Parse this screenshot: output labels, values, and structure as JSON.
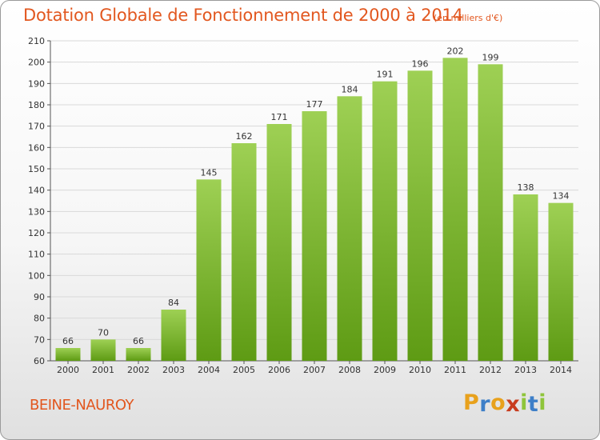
{
  "title": "Dotation Globale de Fonctionnement de 2000 à 2014",
  "unit_note": "(en milliers d'€)",
  "commune": "BEINE-NAUROY",
  "brand": {
    "letters": [
      "P",
      "r",
      "o",
      "x",
      "i",
      "t",
      "i"
    ],
    "colors": [
      "#e8a11c",
      "#3d7fc8",
      "#e8a11c",
      "#c83c1e",
      "#8fc53a",
      "#3d7fc8",
      "#8fc53a"
    ]
  },
  "colors": {
    "accent": "#e2571f",
    "bar_light": "#9ed054",
    "bar_dark": "#5e9b14",
    "grid": "#d9d9d9"
  },
  "chart_data": {
    "type": "bar",
    "categories": [
      "2000",
      "2001",
      "2002",
      "2003",
      "2004",
      "2005",
      "2006",
      "2007",
      "2008",
      "2009",
      "2010",
      "2011",
      "2012",
      "2013",
      "2014"
    ],
    "values": [
      66,
      70,
      66,
      84,
      145,
      162,
      171,
      177,
      184,
      191,
      196,
      202,
      199,
      138,
      134
    ],
    "ylim": [
      60,
      210
    ],
    "yticks": [
      60,
      70,
      80,
      90,
      100,
      110,
      120,
      130,
      140,
      150,
      160,
      170,
      180,
      190,
      200,
      210
    ],
    "grid": true,
    "xlabel": "",
    "ylabel": ""
  }
}
